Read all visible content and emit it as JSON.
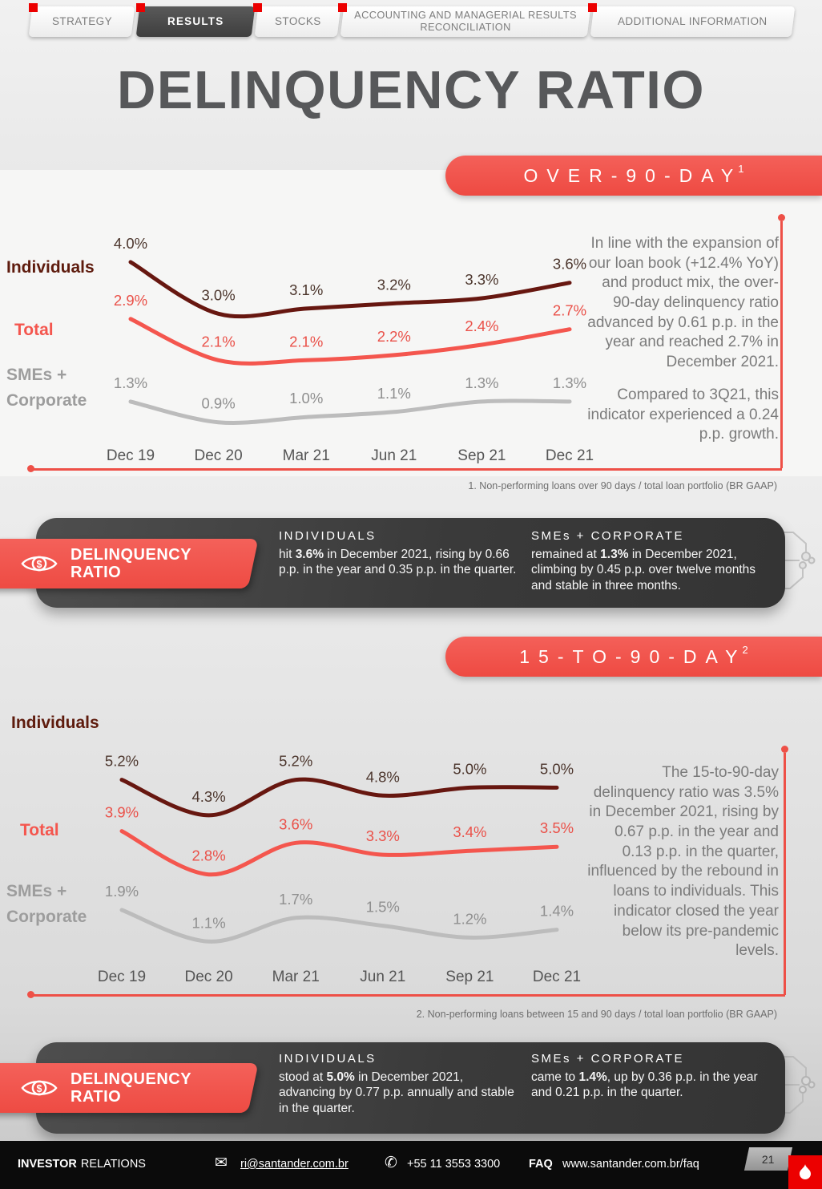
{
  "tabs": [
    {
      "label": "STRATEGY"
    },
    {
      "label": "RESULTS"
    },
    {
      "label": "STOCKS"
    },
    {
      "label": "ACCOUNTING AND MANAGERIAL RESULTS RECONCILIATION"
    },
    {
      "label": "ADDITIONAL INFORMATION"
    }
  ],
  "title": "DELINQUENCY RATIO",
  "colors": {
    "santander_red": "#ec0000",
    "banner_red": "#f2554e",
    "individuals_line": "#671710",
    "total_line": "#f4564e",
    "smes_line": "#bcbcbc",
    "dark_band": "#3a3a3a",
    "title_gray": "#57585a"
  },
  "section1": {
    "banner_sup": "1",
    "commentary": [
      "In line with the expansion of our loan book (+12.4% YoY) and product mix, the over-90-day delinquency ratio advanced by 0.61 p.p. in the year and reached 2.7% in December 2021.",
      "Compared to 3Q21, this indicator experienced a 0.24 p.p. growth."
    ],
    "footnote": "1. Non-performing loans over 90 days / total loan portfolio (BR GAAP)"
  },
  "callout1": {
    "title_line1": "DELINQUENCY",
    "title_line2": "RATIO",
    "col1_title": "INDIVIDUALS",
    "col1_text": [
      {
        "t": "hit "
      },
      {
        "t": "3.6%",
        "b": true
      },
      {
        "t": " in December 2021, rising by 0.66 p.p. in the year and 0.35 p.p. in the quarter."
      }
    ],
    "col2_title": "SMEs + CORPORATE",
    "col2_text": [
      {
        "t": "remained at "
      },
      {
        "t": "1.3%",
        "b": true
      },
      {
        "t": " in December 2021, climbing by 0.45 p.p. over twelve months and stable in three months."
      }
    ]
  },
  "section2": {
    "banner_sup": "2",
    "commentary": [
      "The 15-to-90-day delinquency ratio was 3.5% in December 2021, rising by 0.67 p.p. in the year and 0.13 p.p. in the quarter, influenced by the rebound in loans to individuals. This indicator closed the year below its pre-pandemic levels."
    ],
    "footnote": "2. Non-performing loans between 15 and 90 days / total loan portfolio (BR GAAP)"
  },
  "callout2": {
    "title_line1": "DELINQUENCY",
    "title_line2": "RATIO",
    "col1_title": "INDIVIDUALS",
    "col1_text": [
      {
        "t": "stood at "
      },
      {
        "t": "5.0%",
        "b": true
      },
      {
        "t": " in December 2021, advancing by 0.77 p.p. annually and stable in the quarter."
      }
    ],
    "col2_title": "SMEs + CORPORATE",
    "col2_text": [
      {
        "t": "came to "
      },
      {
        "t": "1.4%",
        "b": true
      },
      {
        "t": ", up by 0.36 p.p. in the year and 0.21 p.p. in the quarter."
      }
    ]
  },
  "footer": {
    "brand_bold": "INVESTOR",
    "brand_regular": "RELATIONS",
    "email": "ri@santander.com.br",
    "phone": "+55 11 3553 3300",
    "faq_label": "FAQ",
    "faq_url": "www.santander.com.br/faq",
    "page": "21"
  },
  "chart_data": [
    {
      "type": "line",
      "title": "OVER-90-DAY",
      "categories": [
        "Dec 19",
        "Dec 20",
        "Mar 21",
        "Jun 21",
        "Sep 21",
        "Dec 21"
      ],
      "series": [
        {
          "name": "Individuals",
          "color": "#671710",
          "label_color": "#4c362d",
          "values": [
            4.0,
            3.0,
            3.1,
            3.2,
            3.3,
            3.6
          ]
        },
        {
          "name": "Total",
          "color": "#f4564e",
          "label_color": "#ea5149",
          "values": [
            2.9,
            2.1,
            2.1,
            2.2,
            2.4,
            2.7
          ]
        },
        {
          "name": "SMEs + Corporate",
          "color": "#bcbcbc",
          "label_color": "#8f8f8f",
          "values": [
            1.3,
            0.9,
            1.0,
            1.1,
            1.3,
            1.3
          ]
        }
      ],
      "value_suffix": "%",
      "ylim": [
        0.6,
        4.2
      ],
      "grid": false,
      "legend_position": "left",
      "xlabel": "",
      "ylabel": "Non-performing loans over 90 days / total loan portfolio (%)"
    },
    {
      "type": "line",
      "title": "15-TO-90-DAY",
      "categories": [
        "Dec 19",
        "Dec 20",
        "Mar 21",
        "Jun 21",
        "Sep 21",
        "Dec 21"
      ],
      "series": [
        {
          "name": "Individuals",
          "color": "#671710",
          "label_color": "#4c362d",
          "values": [
            5.2,
            4.3,
            5.2,
            4.8,
            5.0,
            5.0
          ]
        },
        {
          "name": "Total",
          "color": "#f4564e",
          "label_color": "#ea5149",
          "values": [
            3.9,
            2.8,
            3.6,
            3.3,
            3.4,
            3.5
          ]
        },
        {
          "name": "SMEs + Corporate",
          "color": "#bcbcbc",
          "label_color": "#8f8f8f",
          "values": [
            1.9,
            1.1,
            1.7,
            1.5,
            1.2,
            1.4
          ]
        }
      ],
      "value_suffix": "%",
      "ylim": [
        0.7,
        5.7
      ],
      "grid": false,
      "legend_position": "left",
      "xlabel": "",
      "ylabel": "Non-performing loans between 15 and 90 days / total loan portfolio (%)"
    }
  ]
}
